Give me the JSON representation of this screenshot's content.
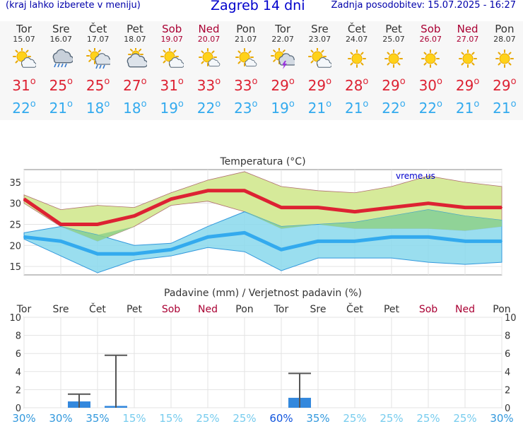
{
  "header": {
    "left_note": "(kraj lahko izberete v meniju)",
    "title": "Zagreb 14 dni",
    "updated": "Zadnja posodobitev: 15.07.2025 - 16:27"
  },
  "days": [
    {
      "name": "Tor",
      "date": "15.07",
      "weekend": false,
      "icon": "sun-cloud-icon",
      "tmax": "31",
      "tmin": "22"
    },
    {
      "name": "Sre",
      "date": "16.07",
      "weekend": false,
      "icon": "rain-cloud-icon",
      "tmax": "25",
      "tmin": "21"
    },
    {
      "name": "Čet",
      "date": "17.07",
      "weekend": false,
      "icon": "sun-rain-icon",
      "tmax": "25",
      "tmin": "18"
    },
    {
      "name": "Pet",
      "date": "18.07",
      "weekend": false,
      "icon": "cloudy-icon",
      "tmax": "27",
      "tmin": "18"
    },
    {
      "name": "Sob",
      "date": "19.07",
      "weekend": true,
      "icon": "sun-cloud-icon",
      "tmax": "31",
      "tmin": "19"
    },
    {
      "name": "Ned",
      "date": "20.07",
      "weekend": true,
      "icon": "sun-small-cloud-icon",
      "tmax": "33",
      "tmin": "22"
    },
    {
      "name": "Pon",
      "date": "21.07",
      "weekend": false,
      "icon": "sun-small-cloud-icon",
      "tmax": "33",
      "tmin": "23"
    },
    {
      "name": "Tor",
      "date": "22.07",
      "weekend": false,
      "icon": "thunderstorm-icon",
      "tmax": "29",
      "tmin": "19"
    },
    {
      "name": "Sre",
      "date": "23.07",
      "weekend": false,
      "icon": "sun-cloud-icon",
      "tmax": "29",
      "tmin": "21"
    },
    {
      "name": "Čet",
      "date": "24.07",
      "weekend": false,
      "icon": "sun-icon",
      "tmax": "28",
      "tmin": "21"
    },
    {
      "name": "Pet",
      "date": "25.07",
      "weekend": false,
      "icon": "sun-icon",
      "tmax": "29",
      "tmin": "22"
    },
    {
      "name": "Sob",
      "date": "26.07",
      "weekend": true,
      "icon": "sun-icon",
      "tmax": "30",
      "tmin": "22"
    },
    {
      "name": "Ned",
      "date": "27.07",
      "weekend": true,
      "icon": "sun-icon",
      "tmax": "29",
      "tmin": "21"
    },
    {
      "name": "Pon",
      "date": "28.07",
      "weekend": false,
      "icon": "sun-icon",
      "tmax": "29",
      "tmin": "21"
    }
  ],
  "colors": {
    "tmax": "#dd2233",
    "tmin": "#33aaee",
    "weekend": "#aa0033",
    "max_band": "#d6ea9a",
    "min_band": "#88d8ec",
    "overlap": "#8fd18a",
    "precip_bar": "#3388dd",
    "prob_high": "#1155dd",
    "prob_low": "#77ccee"
  },
  "chart_data": [
    {
      "type": "line",
      "title": "Temperatura (°C)",
      "watermark": "vreme.us",
      "categories": [
        "Tor",
        "Sre",
        "Čet",
        "Pet",
        "Sob",
        "Ned",
        "Pon",
        "Tor",
        "Sre",
        "Čet",
        "Pet",
        "Sob",
        "Ned",
        "Pon"
      ],
      "ylim": [
        13,
        38
      ],
      "yticks": [
        15,
        20,
        25,
        30,
        35
      ],
      "series": [
        {
          "values": [
            31,
            25,
            25,
            27,
            31,
            33,
            33,
            29,
            29,
            28,
            29,
            30,
            29,
            29
          ],
          "band_high": [
            32,
            28.5,
            29.5,
            29,
            32.5,
            35.5,
            37.5,
            34,
            33,
            32.5,
            34,
            36.5,
            35,
            34
          ],
          "band_low": [
            30,
            24.5,
            21,
            24.5,
            29.5,
            30.5,
            28,
            24,
            25,
            24,
            24,
            24,
            23.5,
            24.5
          ]
        },
        {
          "values": [
            22,
            21,
            18,
            18,
            19,
            22,
            23,
            19,
            21,
            21,
            22,
            22,
            21,
            21
          ],
          "band_high": [
            23,
            24.5,
            22.5,
            20,
            20.5,
            24.5,
            28,
            24.5,
            25,
            25.5,
            27,
            28.5,
            27,
            26
          ],
          "band_low": [
            21.5,
            17.5,
            13.5,
            16.5,
            17.5,
            19.5,
            18.5,
            14,
            17,
            17,
            17,
            16,
            15.5,
            16
          ]
        }
      ]
    },
    {
      "type": "bar",
      "title": "Padavine (mm) / Verjetnost padavin (%)",
      "categories": [
        "Tor",
        "Sre",
        "Čet",
        "Pet",
        "Sob",
        "Ned",
        "Pon",
        "Tor",
        "Sre",
        "Čet",
        "Pet",
        "Sob",
        "Ned",
        "Pon"
      ],
      "ylim": [
        0,
        10
      ],
      "yticks": [
        0,
        2,
        4,
        6,
        8,
        10
      ],
      "precip_mm": [
        0,
        0.7,
        0.2,
        0,
        0,
        0,
        0,
        1.1,
        0,
        0,
        0,
        0,
        0,
        0
      ],
      "precip_max_mm": [
        0,
        1.5,
        5.8,
        0,
        0,
        0,
        0,
        3.8,
        0,
        0,
        0,
        0,
        0,
        0
      ],
      "probability": [
        "30%",
        "30%",
        "35%",
        "15%",
        "15%",
        "25%",
        "25%",
        "60%",
        "35%",
        "25%",
        "25%",
        "25%",
        "25%",
        "30%"
      ],
      "prob_emphasis": [
        false,
        false,
        false,
        false,
        false,
        false,
        false,
        true,
        false,
        false,
        false,
        false,
        false,
        false
      ]
    }
  ]
}
